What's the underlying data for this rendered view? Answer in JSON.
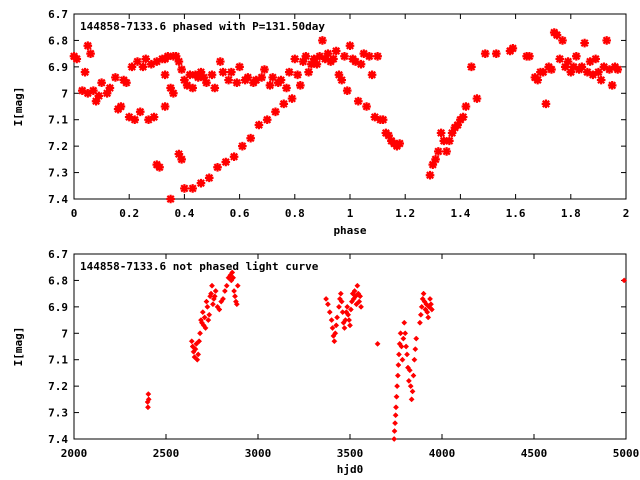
{
  "colors": {
    "points": "#ff0000",
    "axes": "#000000",
    "background": "#ffffff"
  },
  "chart_data": [
    {
      "type": "scatter",
      "title": "144858-7133.6 phased with P=131.50day",
      "xlabel": "phase",
      "ylabel": "I[mag]",
      "xlim": [
        0,
        2
      ],
      "ylim": [
        6.7,
        7.4
      ],
      "y_inverted": true,
      "marker": "star",
      "x_ticks": [
        "0",
        "0.2",
        "0.4",
        "0.6",
        "0.8",
        "1",
        "1.2",
        "1.4",
        "1.6",
        "1.8",
        "2"
      ],
      "y_ticks": [
        "6.7",
        "6.8",
        "6.9",
        "7",
        "7.1",
        "7.2",
        "7.3",
        "7.4"
      ],
      "points": [
        [
          0.0,
          6.86
        ],
        [
          0.01,
          6.87
        ],
        [
          0.04,
          6.92
        ],
        [
          0.05,
          6.82
        ],
        [
          0.06,
          6.85
        ],
        [
          0.03,
          6.99
        ],
        [
          0.05,
          7.0
        ],
        [
          0.07,
          6.99
        ],
        [
          0.08,
          7.03
        ],
        [
          0.09,
          7.01
        ],
        [
          0.1,
          6.96
        ],
        [
          0.12,
          7.0
        ],
        [
          0.13,
          6.98
        ],
        [
          0.15,
          6.94
        ],
        [
          0.16,
          7.06
        ],
        [
          0.17,
          7.05
        ],
        [
          0.18,
          6.95
        ],
        [
          0.19,
          6.96
        ],
        [
          0.2,
          7.09
        ],
        [
          0.21,
          6.9
        ],
        [
          0.22,
          7.1
        ],
        [
          0.23,
          6.88
        ],
        [
          0.24,
          7.07
        ],
        [
          0.25,
          6.9
        ],
        [
          0.26,
          6.87
        ],
        [
          0.27,
          7.1
        ],
        [
          0.28,
          6.89
        ],
        [
          0.29,
          7.09
        ],
        [
          0.3,
          6.88
        ],
        [
          0.3,
          7.27
        ],
        [
          0.31,
          7.28
        ],
        [
          0.32,
          6.87
        ],
        [
          0.33,
          6.87
        ],
        [
          0.33,
          6.93
        ],
        [
          0.33,
          7.05
        ],
        [
          0.34,
          6.86
        ],
        [
          0.35,
          6.98
        ],
        [
          0.35,
          7.4
        ],
        [
          0.36,
          6.86
        ],
        [
          0.36,
          7.0
        ],
        [
          0.37,
          6.86
        ],
        [
          0.38,
          6.88
        ],
        [
          0.38,
          7.23
        ],
        [
          0.39,
          7.25
        ],
        [
          0.39,
          6.91
        ],
        [
          0.4,
          6.95
        ],
        [
          0.4,
          7.36
        ],
        [
          0.41,
          6.97
        ],
        [
          0.42,
          6.93
        ],
        [
          0.43,
          6.98
        ],
        [
          0.43,
          7.36
        ],
        [
          0.44,
          6.93
        ],
        [
          0.45,
          6.94
        ],
        [
          0.46,
          6.92
        ],
        [
          0.46,
          7.34
        ],
        [
          0.47,
          6.94
        ],
        [
          0.48,
          6.96
        ],
        [
          0.49,
          7.32
        ],
        [
          0.5,
          6.93
        ],
        [
          0.51,
          6.98
        ],
        [
          0.52,
          7.28
        ],
        [
          0.53,
          6.88
        ],
        [
          0.54,
          6.92
        ],
        [
          0.55,
          7.26
        ],
        [
          0.56,
          6.95
        ],
        [
          0.57,
          6.92
        ],
        [
          0.58,
          7.24
        ],
        [
          0.59,
          6.96
        ],
        [
          0.6,
          6.9
        ],
        [
          0.61,
          7.2
        ],
        [
          0.62,
          6.95
        ],
        [
          0.63,
          6.94
        ],
        [
          0.64,
          7.17
        ],
        [
          0.65,
          6.96
        ],
        [
          0.66,
          6.95
        ],
        [
          0.67,
          7.12
        ],
        [
          0.68,
          6.94
        ],
        [
          0.69,
          6.91
        ],
        [
          0.7,
          7.1
        ],
        [
          0.71,
          6.97
        ],
        [
          0.72,
          6.94
        ],
        [
          0.73,
          7.07
        ],
        [
          0.74,
          6.96
        ],
        [
          0.75,
          6.95
        ],
        [
          0.76,
          7.04
        ],
        [
          0.77,
          6.98
        ],
        [
          0.78,
          6.92
        ],
        [
          0.79,
          7.02
        ],
        [
          0.8,
          6.87
        ],
        [
          0.81,
          6.93
        ],
        [
          0.82,
          6.97
        ],
        [
          0.83,
          6.88
        ],
        [
          0.84,
          6.86
        ],
        [
          0.85,
          6.92
        ],
        [
          0.86,
          6.89
        ],
        [
          0.87,
          6.87
        ],
        [
          0.88,
          6.89
        ],
        [
          0.89,
          6.86
        ],
        [
          0.9,
          6.8
        ],
        [
          0.91,
          6.87
        ],
        [
          0.92,
          6.85
        ],
        [
          0.93,
          6.88
        ],
        [
          0.94,
          6.87
        ],
        [
          0.95,
          6.84
        ],
        [
          0.96,
          6.93
        ],
        [
          0.97,
          6.95
        ],
        [
          0.98,
          6.86
        ],
        [
          0.99,
          6.99
        ],
        [
          1.0,
          6.82
        ],
        [
          1.01,
          6.87
        ],
        [
          1.02,
          6.88
        ],
        [
          1.03,
          7.03
        ],
        [
          1.04,
          6.89
        ],
        [
          1.05,
          6.85
        ],
        [
          1.06,
          7.05
        ],
        [
          1.07,
          6.86
        ],
        [
          1.08,
          6.93
        ],
        [
          1.09,
          7.09
        ],
        [
          1.1,
          6.86
        ],
        [
          1.11,
          7.1
        ],
        [
          1.12,
          7.1
        ],
        [
          1.13,
          7.15
        ],
        [
          1.14,
          7.16
        ],
        [
          1.15,
          7.18
        ],
        [
          1.16,
          7.19
        ],
        [
          1.17,
          7.2
        ],
        [
          1.18,
          7.19
        ],
        [
          1.29,
          7.31
        ],
        [
          1.3,
          7.27
        ],
        [
          1.31,
          7.25
        ],
        [
          1.32,
          7.22
        ],
        [
          1.33,
          7.15
        ],
        [
          1.34,
          7.18
        ],
        [
          1.35,
          7.22
        ],
        [
          1.36,
          7.18
        ],
        [
          1.37,
          7.15
        ],
        [
          1.38,
          7.13
        ],
        [
          1.39,
          7.12
        ],
        [
          1.4,
          7.1
        ],
        [
          1.41,
          7.09
        ],
        [
          1.42,
          7.05
        ],
        [
          1.44,
          6.9
        ],
        [
          1.46,
          7.02
        ],
        [
          1.49,
          6.85
        ],
        [
          1.53,
          6.85
        ],
        [
          1.58,
          6.84
        ],
        [
          1.59,
          6.83
        ],
        [
          1.64,
          6.86
        ],
        [
          1.65,
          6.86
        ],
        [
          1.67,
          6.94
        ],
        [
          1.68,
          6.95
        ],
        [
          1.69,
          6.92
        ],
        [
          1.7,
          6.92
        ],
        [
          1.71,
          7.04
        ],
        [
          1.72,
          6.9
        ],
        [
          1.73,
          6.91
        ],
        [
          1.74,
          6.77
        ],
        [
          1.75,
          6.78
        ],
        [
          1.76,
          6.87
        ],
        [
          1.77,
          6.8
        ],
        [
          1.78,
          6.9
        ],
        [
          1.79,
          6.88
        ],
        [
          1.8,
          6.92
        ],
        [
          1.81,
          6.9
        ],
        [
          1.82,
          6.86
        ],
        [
          1.83,
          6.91
        ],
        [
          1.84,
          6.9
        ],
        [
          1.85,
          6.81
        ],
        [
          1.86,
          6.92
        ],
        [
          1.87,
          6.88
        ],
        [
          1.88,
          6.93
        ],
        [
          1.89,
          6.87
        ],
        [
          1.9,
          6.92
        ],
        [
          1.91,
          6.95
        ],
        [
          1.92,
          6.9
        ],
        [
          1.93,
          6.8
        ],
        [
          1.94,
          6.91
        ],
        [
          1.95,
          6.97
        ],
        [
          1.96,
          6.9
        ],
        [
          1.97,
          6.91
        ]
      ]
    },
    {
      "type": "scatter",
      "title": "144858-7133.6 not phased light curve",
      "xlabel": "hjd0",
      "ylabel": "I[mag]",
      "xlim": [
        2000,
        5000
      ],
      "ylim": [
        6.7,
        7.4
      ],
      "y_inverted": true,
      "marker": "diamond",
      "x_ticks": [
        "2000",
        "2500",
        "3000",
        "3500",
        "4000",
        "4500",
        "5000"
      ],
      "y_ticks": [
        "6.7",
        "6.8",
        "6.9",
        "7",
        "7.1",
        "7.2",
        "7.3",
        "7.4"
      ],
      "points": [
        [
          2400,
          7.26
        ],
        [
          2402,
          7.28
        ],
        [
          2404,
          7.23
        ],
        [
          2406,
          7.25
        ],
        [
          2640,
          7.03
        ],
        [
          2645,
          7.05
        ],
        [
          2650,
          7.07
        ],
        [
          2655,
          7.09
        ],
        [
          2660,
          7.06
        ],
        [
          2665,
          7.04
        ],
        [
          2670,
          7.1
        ],
        [
          2675,
          7.08
        ],
        [
          2680,
          7.03
        ],
        [
          2685,
          7.0
        ],
        [
          2690,
          6.95
        ],
        [
          2695,
          6.96
        ],
        [
          2700,
          6.92
        ],
        [
          2705,
          6.97
        ],
        [
          2710,
          6.94
        ],
        [
          2715,
          6.98
        ],
        [
          2720,
          6.88
        ],
        [
          2725,
          6.9
        ],
        [
          2730,
          6.95
        ],
        [
          2735,
          6.93
        ],
        [
          2740,
          6.86
        ],
        [
          2745,
          6.85
        ],
        [
          2750,
          6.82
        ],
        [
          2755,
          6.89
        ],
        [
          2760,
          6.87
        ],
        [
          2765,
          6.86
        ],
        [
          2770,
          6.84
        ],
        [
          2780,
          6.9
        ],
        [
          2790,
          6.91
        ],
        [
          2800,
          6.88
        ],
        [
          2810,
          6.87
        ],
        [
          2820,
          6.84
        ],
        [
          2830,
          6.82
        ],
        [
          2840,
          6.79
        ],
        [
          2850,
          6.78
        ],
        [
          2855,
          6.8
        ],
        [
          2860,
          6.77
        ],
        [
          2865,
          6.79
        ],
        [
          2870,
          6.84
        ],
        [
          2875,
          6.86
        ],
        [
          2880,
          6.88
        ],
        [
          2885,
          6.89
        ],
        [
          2890,
          6.82
        ],
        [
          3370,
          6.87
        ],
        [
          3380,
          6.89
        ],
        [
          3390,
          6.92
        ],
        [
          3400,
          6.95
        ],
        [
          3405,
          6.98
        ],
        [
          3410,
          7.01
        ],
        [
          3415,
          7.03
        ],
        [
          3420,
          7.0
        ],
        [
          3425,
          6.97
        ],
        [
          3430,
          6.94
        ],
        [
          3440,
          6.9
        ],
        [
          3445,
          6.87
        ],
        [
          3450,
          6.85
        ],
        [
          3455,
          6.88
        ],
        [
          3460,
          6.92
        ],
        [
          3465,
          6.96
        ],
        [
          3470,
          6.98
        ],
        [
          3475,
          6.95
        ],
        [
          3480,
          6.92
        ],
        [
          3485,
          6.9
        ],
        [
          3490,
          6.93
        ],
        [
          3495,
          6.95
        ],
        [
          3500,
          6.97
        ],
        [
          3505,
          6.91
        ],
        [
          3510,
          6.88
        ],
        [
          3515,
          6.85
        ],
        [
          3520,
          6.87
        ],
        [
          3525,
          6.84
        ],
        [
          3530,
          6.86
        ],
        [
          3535,
          6.89
        ],
        [
          3540,
          6.82
        ],
        [
          3545,
          6.85
        ],
        [
          3550,
          6.88
        ],
        [
          3555,
          6.86
        ],
        [
          3560,
          6.9
        ],
        [
          3650,
          7.04
        ],
        [
          3740,
          7.4
        ],
        [
          3742,
          7.37
        ],
        [
          3745,
          7.34
        ],
        [
          3748,
          7.31
        ],
        [
          3750,
          7.28
        ],
        [
          3753,
          7.24
        ],
        [
          3756,
          7.2
        ],
        [
          3760,
          7.16
        ],
        [
          3763,
          7.12
        ],
        [
          3766,
          7.08
        ],
        [
          3770,
          7.04
        ],
        [
          3775,
          7.0
        ],
        [
          3780,
          7.05
        ],
        [
          3785,
          7.1
        ],
        [
          3790,
          7.02
        ],
        [
          3795,
          6.96
        ],
        [
          3800,
          7.0
        ],
        [
          3805,
          7.05
        ],
        [
          3810,
          7.08
        ],
        [
          3815,
          7.13
        ],
        [
          3820,
          7.18
        ],
        [
          3825,
          7.14
        ],
        [
          3830,
          7.2
        ],
        [
          3835,
          7.25
        ],
        [
          3840,
          7.22
        ],
        [
          3845,
          7.16
        ],
        [
          3850,
          7.1
        ],
        [
          3855,
          7.06
        ],
        [
          3860,
          7.02
        ],
        [
          3880,
          6.96
        ],
        [
          3885,
          6.93
        ],
        [
          3890,
          6.9
        ],
        [
          3895,
          6.87
        ],
        [
          3900,
          6.85
        ],
        [
          3905,
          6.88
        ],
        [
          3910,
          6.91
        ],
        [
          3915,
          6.89
        ],
        [
          3920,
          6.92
        ],
        [
          3925,
          6.94
        ],
        [
          3930,
          6.9
        ],
        [
          3935,
          6.87
        ],
        [
          3940,
          6.89
        ],
        [
          3945,
          6.91
        ],
        [
          4990,
          6.8
        ]
      ]
    }
  ]
}
